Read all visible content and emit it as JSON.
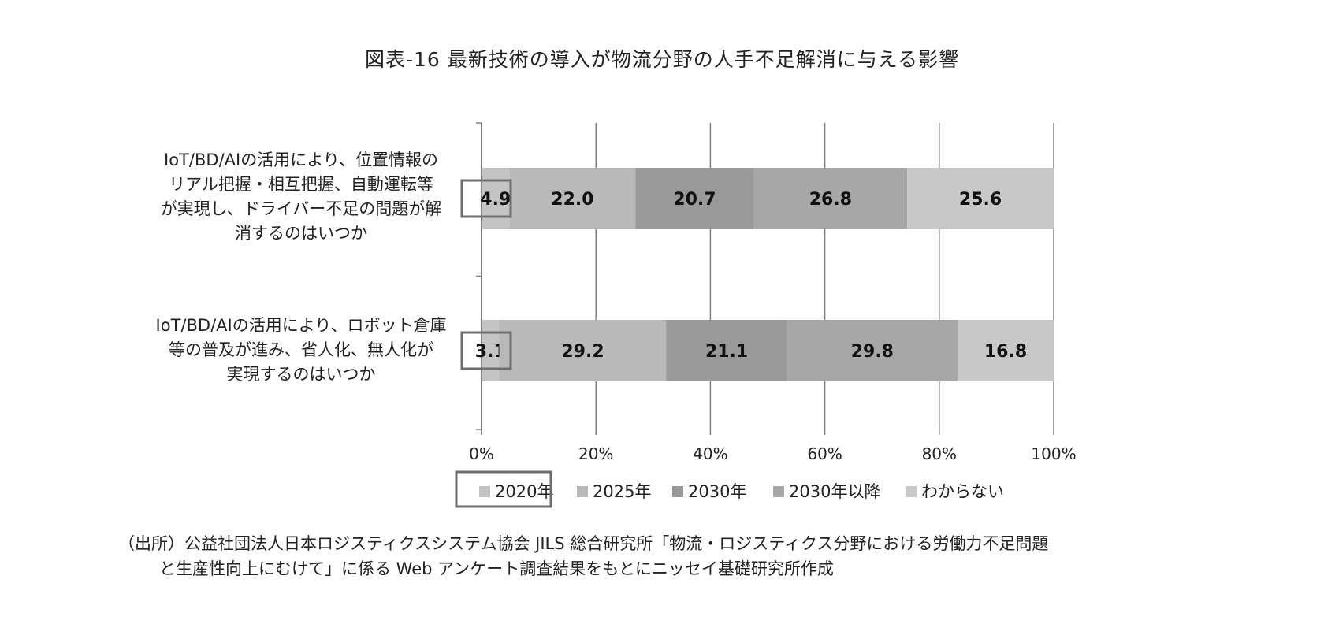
{
  "chart_data": {
    "type": "bar",
    "orientation": "horizontal",
    "stacked": true,
    "percent": true,
    "title": "図表-16 最新技術の導入が物流分野の人手不足解消に与える影響",
    "categories": [
      "IoT/BD/AIの活用により、位置情報のリアル把握・相互把握、自動運転等が実現し、ドライバー不足の問題が解消するのはいつか",
      "IoT/BD/AIの活用により、ロボット倉庫等の普及が進み、省人化、無人化が実現するのはいつか"
    ],
    "category_lines": [
      [
        "IoT/BD/AIの活用により、位置情報の",
        "リアル把握・相互把握、自動運転等",
        "が実現し、ドライバー不足の問題が解",
        "消するのはいつか"
      ],
      [
        "IoT/BD/AIの活用により、ロボット倉庫",
        "等の普及が進み、省人化、無人化が",
        "実現するのはいつか"
      ]
    ],
    "series": [
      {
        "name": "2020年",
        "values": [
          4.9,
          3.1
        ],
        "color": "#c4c4c4"
      },
      {
        "name": "2025年",
        "values": [
          22.0,
          29.2
        ],
        "color": "#b9b9b9"
      },
      {
        "name": "2030年",
        "values": [
          20.7,
          21.1
        ],
        "color": "#999999"
      },
      {
        "name": "2030年以降",
        "values": [
          26.8,
          29.8
        ],
        "color": "#a7a7a7"
      },
      {
        "name": "わからない",
        "values": [
          25.6,
          16.8
        ],
        "color": "#c8c8c8"
      }
    ],
    "value_labels": [
      [
        "4.9",
        "22.0",
        "20.7",
        "26.8",
        "25.6"
      ],
      [
        "3.1",
        "29.2",
        "21.1",
        "29.8",
        "16.8"
      ]
    ],
    "xlim": [
      0,
      100
    ],
    "x_ticks": [
      "0%",
      "20%",
      "40%",
      "60%",
      "80%",
      "100%"
    ],
    "grid": true,
    "legend_position": "bottom",
    "highlighted_series": "2020年"
  },
  "source_note": [
    "（出所）公益社団法人日本ロジスティクスシステム協会 JILS 総合研究所「物流・ロジスティクス分野における労働力不足問題",
    "と生産性向上にむけて」に係る Web アンケート調査結果をもとにニッセイ基礎研究所作成"
  ]
}
